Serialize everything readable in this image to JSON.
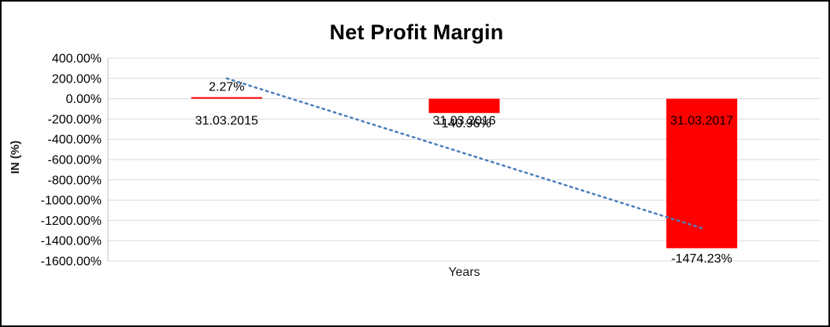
{
  "chart_data": {
    "type": "bar",
    "title": "Net Profit Margin",
    "xlabel": "Years",
    "ylabel": "IN (%)",
    "categories": [
      "31.03.2015",
      "31.03.2016",
      "31.03.2017"
    ],
    "values": [
      2.27,
      -140.96,
      -1474.23
    ],
    "data_labels": [
      "2.27%",
      "-140.96%",
      "-1474.23%"
    ],
    "ytick_labels": [
      "400.00%",
      "200.00%",
      "0.00%",
      "-200.00%",
      "-400.00%",
      "-600.00%",
      "-800.00%",
      "-1000.00%",
      "-1200.00%",
      "-1400.00%",
      "-1600.00%"
    ],
    "ytick_values": [
      400,
      200,
      0,
      -200,
      -400,
      -600,
      -800,
      -1000,
      -1200,
      -1400,
      -1600
    ],
    "ylim": [
      -1600,
      400
    ],
    "grid": true,
    "legend": "none",
    "bar_color": "#ff0000",
    "grid_color": "#d9d9d9",
    "axis_color": "#bfbfbf",
    "text_color": "#000000",
    "trendline": {
      "style": "dotted",
      "color": "#4a7ebb",
      "start_value": 200.61,
      "end_value": -1275.89
    }
  }
}
